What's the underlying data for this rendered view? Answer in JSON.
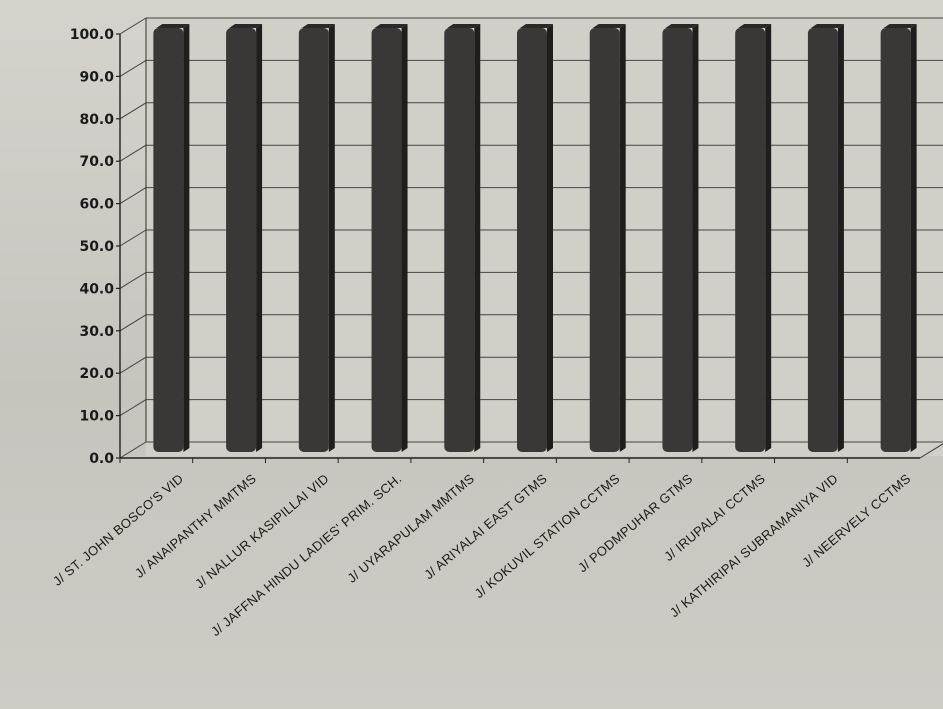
{
  "chart_data": {
    "type": "bar",
    "title": "",
    "xlabel": "",
    "ylabel": "",
    "ylim": [
      0,
      100
    ],
    "yticks": [
      "0.0",
      "10.0",
      "20.0",
      "30.0",
      "40.0",
      "50.0",
      "60.0",
      "70.0",
      "80.0",
      "90.0",
      "100.0"
    ],
    "grid": true,
    "legend": "none",
    "bar_color": "#3a3836",
    "categories": [
      "J/ ST. JOHN BOSCO'S VID",
      "J/ ANAIPANTHY MMTMS",
      "J/ NALLUR KASIPILLAI VID",
      "J/ JAFFNA HINDU LADIES' PRIM. SCH.",
      "J/ UYARAPULAM MMTMS",
      "J/ ARIYALAI EAST GTMS",
      "J/ KOKUVIL STATION CCTMS",
      "J/ PODMPUHAR GTMS",
      "J/ IRUPALAI CCTMS",
      "J/ KATHIRIPAI SUBRAMANIYA VID",
      "J/ NEERVELY CCTMS"
    ],
    "values": [
      100,
      100,
      100,
      100,
      100,
      100,
      100,
      100,
      100,
      100,
      100
    ]
  }
}
